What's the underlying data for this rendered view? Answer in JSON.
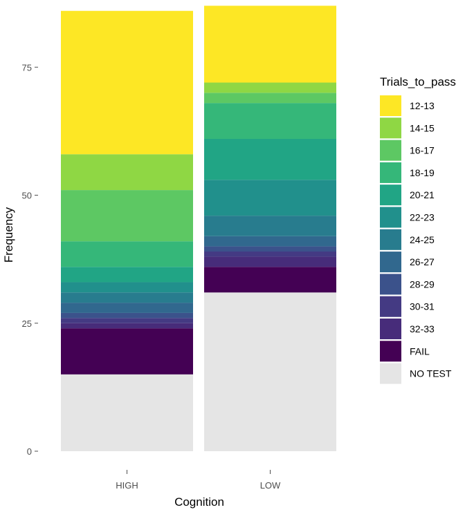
{
  "chart_data": {
    "type": "bar",
    "stacked": true,
    "xlabel": "Cognition",
    "ylabel": "Frequency",
    "ylim": [
      0,
      88
    ],
    "y_ticks": [
      0,
      25,
      50,
      75
    ],
    "categories": [
      "HIGH",
      "LOW"
    ],
    "legend": {
      "title": "Trials_to_pass",
      "position": "right"
    },
    "series": [
      {
        "name": "12-13",
        "color": "#FDE725",
        "values": [
          28,
          15
        ]
      },
      {
        "name": "14-15",
        "color": "#8FD744",
        "values": [
          7,
          2
        ]
      },
      {
        "name": "16-17",
        "color": "#5DC863",
        "values": [
          10,
          2
        ]
      },
      {
        "name": "18-19",
        "color": "#35B779",
        "values": [
          5,
          7
        ]
      },
      {
        "name": "20-21",
        "color": "#21A585",
        "values": [
          3,
          8
        ]
      },
      {
        "name": "22-23",
        "color": "#21908C",
        "values": [
          2,
          7
        ]
      },
      {
        "name": "24-25",
        "color": "#287C8E",
        "values": [
          2,
          4
        ]
      },
      {
        "name": "26-27",
        "color": "#31688E",
        "values": [
          2,
          2
        ]
      },
      {
        "name": "28-29",
        "color": "#3B528B",
        "values": [
          1,
          1
        ]
      },
      {
        "name": "30-31",
        "color": "#443A83",
        "values": [
          1,
          1
        ]
      },
      {
        "name": "32-33",
        "color": "#472C7A",
        "values": [
          1,
          2
        ]
      },
      {
        "name": "FAIL",
        "color": "#440154",
        "values": [
          9,
          5
        ]
      },
      {
        "name": "NO TEST",
        "color": "#E5E5E5",
        "values": [
          15,
          31
        ]
      }
    ]
  }
}
